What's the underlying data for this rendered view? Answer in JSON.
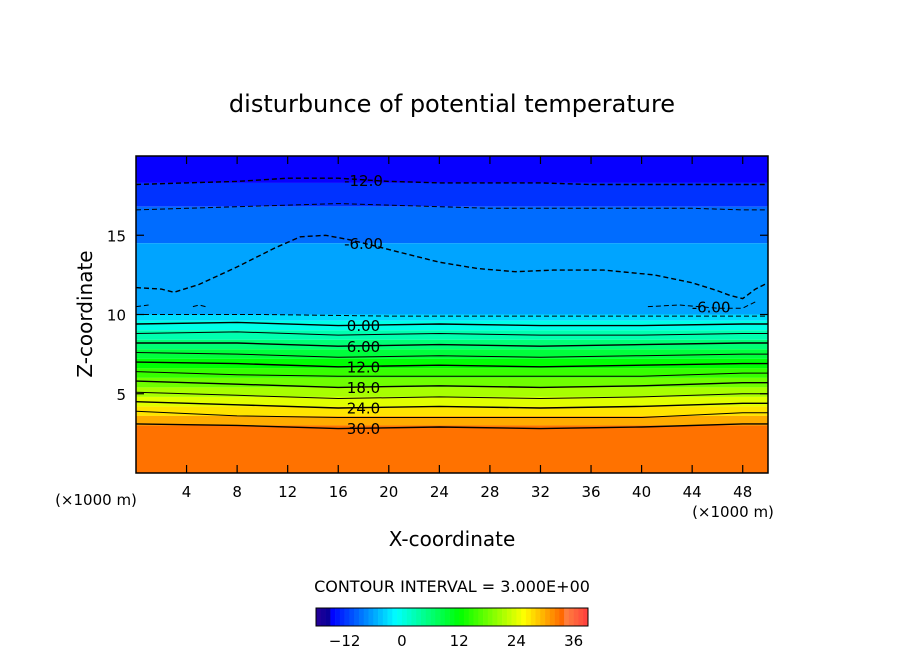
{
  "chart_data": {
    "type": "contour",
    "title": "disturbunce of potential temperature",
    "xlabel": "X-coordinate",
    "ylabel": "Z-coordinate",
    "x_unit": "(×1000 m)",
    "y_unit": "(×1000 m)",
    "xlim": [
      0,
      50
    ],
    "ylim": [
      0,
      20
    ],
    "xticks": [
      4,
      8,
      12,
      16,
      20,
      24,
      28,
      32,
      36,
      40,
      44,
      48
    ],
    "yticks": [
      5,
      10,
      15
    ],
    "contour_interval_label": "CONTOUR INTERVAL = 3.000E+00",
    "colorbar": {
      "min": -18,
      "max": 39,
      "step": 3,
      "ticks": [
        -12,
        0,
        12,
        24,
        36
      ]
    },
    "contours": [
      {
        "level": -12,
        "label": "-12.0",
        "style": "dashed",
        "points": [
          [
            0,
            18.2
          ],
          [
            4,
            18.3
          ],
          [
            8,
            18.4
          ],
          [
            12,
            18.6
          ],
          [
            16,
            18.6
          ],
          [
            20,
            18.4
          ],
          [
            24,
            18.3
          ],
          [
            28,
            18.3
          ],
          [
            32,
            18.3
          ],
          [
            36,
            18.2
          ],
          [
            40,
            18.2
          ],
          [
            44,
            18.2
          ],
          [
            48,
            18.2
          ],
          [
            50,
            18.2
          ]
        ]
      },
      {
        "level": -9,
        "style": "dashed",
        "points": [
          [
            0,
            16.6
          ],
          [
            4,
            16.7
          ],
          [
            8,
            16.8
          ],
          [
            12,
            16.9
          ],
          [
            16,
            17.0
          ],
          [
            20,
            16.9
          ],
          [
            24,
            16.8
          ],
          [
            28,
            16.7
          ],
          [
            32,
            16.7
          ],
          [
            36,
            16.7
          ],
          [
            40,
            16.7
          ],
          [
            44,
            16.7
          ],
          [
            48,
            16.6
          ],
          [
            50,
            16.6
          ]
        ]
      },
      {
        "level": -6,
        "label": "-6.00",
        "style": "dashed",
        "points": [
          [
            0,
            11.7
          ],
          [
            2,
            11.6
          ],
          [
            3,
            11.4
          ],
          [
            5,
            11.9
          ],
          [
            8,
            13.0
          ],
          [
            11,
            14.2
          ],
          [
            13,
            14.9
          ],
          [
            15,
            15.0
          ],
          [
            17,
            14.7
          ],
          [
            19,
            14.3
          ],
          [
            21,
            13.9
          ],
          [
            24,
            13.3
          ],
          [
            27,
            12.9
          ],
          [
            30,
            12.7
          ],
          [
            33,
            12.8
          ],
          [
            37,
            12.8
          ],
          [
            41,
            12.5
          ],
          [
            44,
            12.0
          ],
          [
            46,
            11.5
          ],
          [
            47,
            11.2
          ],
          [
            48,
            11.0
          ],
          [
            49,
            11.6
          ],
          [
            50,
            12.0
          ]
        ]
      },
      {
        "level": -6,
        "style": "dashed",
        "points": [
          [
            0,
            10.5
          ],
          [
            1,
            10.6
          ]
        ]
      },
      {
        "level": -6,
        "style": "dashed",
        "points": [
          [
            4.5,
            10.5
          ],
          [
            5,
            10.6
          ],
          [
            5.5,
            10.5
          ]
        ]
      },
      {
        "level": -6,
        "style": "dashed",
        "points": [
          [
            40.5,
            10.5
          ],
          [
            43,
            10.6
          ],
          [
            46,
            10.4
          ],
          [
            48,
            10.4
          ],
          [
            49,
            10.8
          ]
        ]
      },
      {
        "level": -3,
        "style": "dashed",
        "points": [
          [
            0,
            10.0
          ],
          [
            10,
            10.0
          ],
          [
            20,
            9.9
          ],
          [
            30,
            9.9
          ],
          [
            40,
            9.9
          ],
          [
            50,
            9.9
          ]
        ]
      },
      {
        "level": 0,
        "label": "0.00",
        "style": "solid",
        "points": [
          [
            0,
            9.4
          ],
          [
            8,
            9.5
          ],
          [
            16,
            9.3
          ],
          [
            24,
            9.4
          ],
          [
            32,
            9.3
          ],
          [
            40,
            9.3
          ],
          [
            48,
            9.4
          ],
          [
            50,
            9.4
          ]
        ]
      },
      {
        "level": 3,
        "style": "solid",
        "points": [
          [
            0,
            8.8
          ],
          [
            8,
            8.9
          ],
          [
            16,
            8.7
          ],
          [
            24,
            8.8
          ],
          [
            32,
            8.7
          ],
          [
            40,
            8.7
          ],
          [
            48,
            8.8
          ],
          [
            50,
            8.8
          ]
        ]
      },
      {
        "level": 6,
        "label": "6.00",
        "style": "solid",
        "points": [
          [
            0,
            8.2
          ],
          [
            8,
            8.2
          ],
          [
            16,
            8.0
          ],
          [
            24,
            8.1
          ],
          [
            32,
            8.0
          ],
          [
            40,
            8.1
          ],
          [
            48,
            8.2
          ],
          [
            50,
            8.2
          ]
        ]
      },
      {
        "level": 9,
        "style": "solid",
        "points": [
          [
            0,
            7.6
          ],
          [
            8,
            7.5
          ],
          [
            16,
            7.3
          ],
          [
            24,
            7.4
          ],
          [
            32,
            7.3
          ],
          [
            40,
            7.4
          ],
          [
            48,
            7.5
          ],
          [
            50,
            7.5
          ]
        ]
      },
      {
        "level": 12,
        "label": "12.0",
        "style": "solid",
        "points": [
          [
            0,
            7.0
          ],
          [
            8,
            6.9
          ],
          [
            16,
            6.7
          ],
          [
            24,
            6.8
          ],
          [
            32,
            6.7
          ],
          [
            40,
            6.8
          ],
          [
            48,
            6.9
          ],
          [
            50,
            6.9
          ]
        ]
      },
      {
        "level": 15,
        "style": "solid",
        "points": [
          [
            0,
            6.4
          ],
          [
            8,
            6.2
          ],
          [
            16,
            6.1
          ],
          [
            24,
            6.1
          ],
          [
            32,
            6.1
          ],
          [
            40,
            6.1
          ],
          [
            48,
            6.3
          ],
          [
            50,
            6.3
          ]
        ]
      },
      {
        "level": 18,
        "label": "18.0",
        "style": "solid",
        "points": [
          [
            0,
            5.8
          ],
          [
            8,
            5.6
          ],
          [
            16,
            5.4
          ],
          [
            24,
            5.5
          ],
          [
            32,
            5.4
          ],
          [
            40,
            5.5
          ],
          [
            48,
            5.7
          ],
          [
            50,
            5.7
          ]
        ]
      },
      {
        "level": 21,
        "style": "solid",
        "points": [
          [
            0,
            5.1
          ],
          [
            8,
            4.9
          ],
          [
            16,
            4.7
          ],
          [
            24,
            4.8
          ],
          [
            32,
            4.7
          ],
          [
            40,
            4.8
          ],
          [
            48,
            5.0
          ],
          [
            50,
            5.0
          ]
        ]
      },
      {
        "level": 24,
        "label": "24.0",
        "style": "solid",
        "points": [
          [
            0,
            4.5
          ],
          [
            8,
            4.3
          ],
          [
            16,
            4.1
          ],
          [
            24,
            4.2
          ],
          [
            32,
            4.1
          ],
          [
            40,
            4.2
          ],
          [
            48,
            4.4
          ],
          [
            50,
            4.4
          ]
        ]
      },
      {
        "level": 27,
        "style": "solid",
        "points": [
          [
            0,
            3.9
          ],
          [
            8,
            3.6
          ],
          [
            16,
            3.5
          ],
          [
            24,
            3.5
          ],
          [
            32,
            3.5
          ],
          [
            40,
            3.5
          ],
          [
            48,
            3.8
          ],
          [
            50,
            3.8
          ]
        ]
      },
      {
        "level": 30,
        "label": "30.0",
        "style": "solid",
        "points": [
          [
            0,
            3.1
          ],
          [
            8,
            3.0
          ],
          [
            16,
            2.8
          ],
          [
            24,
            2.9
          ],
          [
            32,
            2.8
          ],
          [
            40,
            2.9
          ],
          [
            48,
            3.1
          ],
          [
            50,
            3.1
          ]
        ]
      }
    ],
    "fill_bands": [
      {
        "from": 18.3,
        "to": 20.0,
        "value": -15
      },
      {
        "from": 16.8,
        "to": 18.3,
        "value": -12
      },
      {
        "from": 14.5,
        "to": 16.8,
        "value": -9
      },
      {
        "from": 10.0,
        "to": 14.5,
        "value": -6
      },
      {
        "from": 9.6,
        "to": 10.0,
        "value": -3
      },
      {
        "from": 9.0,
        "to": 9.6,
        "value": 0
      },
      {
        "from": 8.4,
        "to": 9.0,
        "value": 3
      },
      {
        "from": 7.8,
        "to": 8.4,
        "value": 6
      },
      {
        "from": 7.2,
        "to": 7.8,
        "value": 9
      },
      {
        "from": 6.6,
        "to": 7.2,
        "value": 12
      },
      {
        "from": 6.0,
        "to": 6.6,
        "value": 15
      },
      {
        "from": 5.4,
        "to": 6.0,
        "value": 18
      },
      {
        "from": 4.8,
        "to": 5.4,
        "value": 21
      },
      {
        "from": 4.2,
        "to": 4.8,
        "value": 24
      },
      {
        "from": 3.6,
        "to": 4.2,
        "value": 27
      },
      {
        "from": 3.0,
        "to": 3.6,
        "value": 30
      },
      {
        "from": 0.0,
        "to": 3.0,
        "value": 33
      }
    ]
  }
}
